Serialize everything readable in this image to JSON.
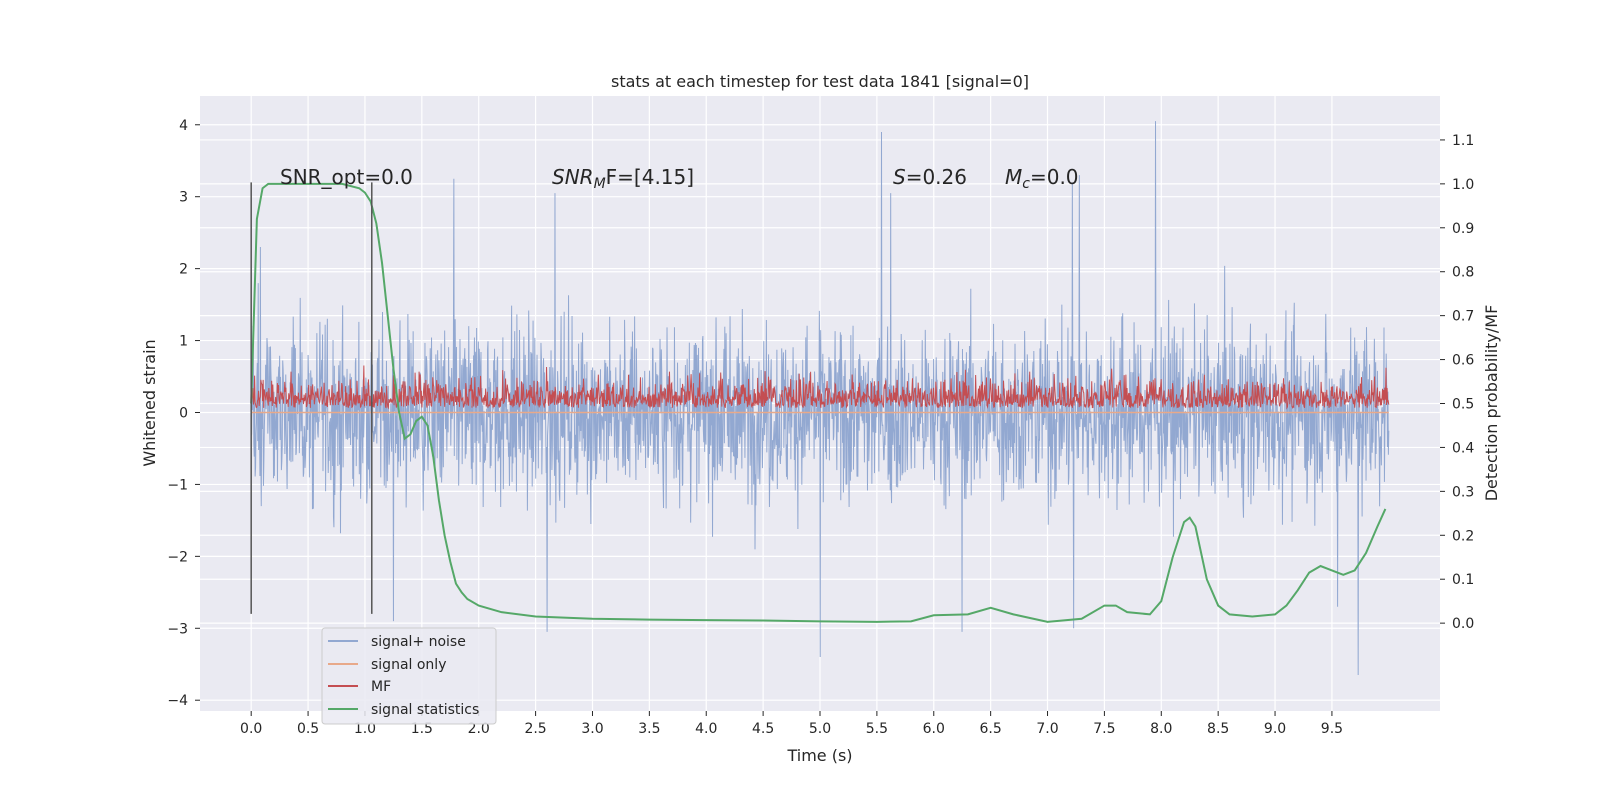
{
  "chart_data": {
    "type": "line",
    "title": "stats at each timestep for test data 1841 [signal=0]",
    "xlabel": "Time (s)",
    "ylabel": "Whitened strain",
    "ylabel_right": "Detection probability/MF",
    "xlim": [
      -0.45,
      10.45
    ],
    "ylim": [
      -4.15,
      4.4
    ],
    "ylim_right": [
      -0.2,
      1.2
    ],
    "x_ticks": [
      0.0,
      0.5,
      1.0,
      1.5,
      2.0,
      2.5,
      3.0,
      3.5,
      4.0,
      4.5,
      5.0,
      5.5,
      6.0,
      6.5,
      7.0,
      7.5,
      8.0,
      8.5,
      9.0,
      9.5
    ],
    "x_tick_labels": [
      "0.0",
      "0.5",
      "1.0",
      "1.5",
      "2.0",
      "2.5",
      "3.0",
      "3.5",
      "4.0",
      "4.5",
      "5.0",
      "5.5",
      "6.0",
      "6.5",
      "7.0",
      "7.5",
      "8.0",
      "8.5",
      "9.0",
      "9.5"
    ],
    "y_ticks": [
      4,
      3,
      2,
      1,
      0,
      -1,
      -2,
      -3,
      -4
    ],
    "y_tick_labels": [
      "4",
      "3",
      "2",
      "1",
      "0",
      "−1",
      "−2",
      "−3",
      "−4"
    ],
    "y_right_ticks": [
      1.1,
      1.0,
      0.9,
      0.8,
      0.7,
      0.6,
      0.5,
      0.4,
      0.3,
      0.2,
      0.1,
      0.0
    ],
    "y_right_tick_labels": [
      "1.1",
      "1.0",
      "0.9",
      "0.8",
      "0.7",
      "0.6",
      "0.5",
      "0.4",
      "0.3",
      "0.2",
      "0.1",
      "0.0"
    ],
    "grid": true,
    "legend_placement": "lower-left",
    "annotations": {
      "snr_opt": "SNR_opt=0.0",
      "snr_mf_base": "SNR",
      "snr_mf_sub": "M",
      "snr_mf_rest": "F=[4.15]",
      "s_base": "S",
      "s_rest": "=0.26",
      "mc_base": "M",
      "mc_sub": "c",
      "mc_rest": "=0.0"
    },
    "vertical_markers": [
      {
        "x": 0.0,
        "y_range": [
          -2.8,
          3.2
        ]
      },
      {
        "x": 1.06,
        "y_range": [
          -2.8,
          3.2
        ]
      }
    ],
    "series": [
      {
        "name": "signal+ noise",
        "color": "#92a8d1",
        "x_range": [
          0.0,
          10.0
        ],
        "envelope": {
          "typical_max": 1.6,
          "typical_min": -1.6,
          "peak_max": 4.05,
          "peak_min": -3.65
        },
        "spikes": [
          {
            "x": 0.08,
            "y": 2.3
          },
          {
            "x": 1.78,
            "y": 3.25
          },
          {
            "x": 2.67,
            "y": 3.05
          },
          {
            "x": 5.54,
            "y": 3.9
          },
          {
            "x": 5.62,
            "y": 3.05
          },
          {
            "x": 7.22,
            "y": 3.2
          },
          {
            "x": 7.28,
            "y": 3.3
          },
          {
            "x": 7.95,
            "y": 4.05
          },
          {
            "x": 5.0,
            "y": -3.4
          },
          {
            "x": 2.6,
            "y": -3.05
          },
          {
            "x": 6.25,
            "y": -3.05
          },
          {
            "x": 7.23,
            "y": -3.0
          },
          {
            "x": 9.73,
            "y": -3.65
          },
          {
            "x": 9.55,
            "y": -2.7
          },
          {
            "x": 1.25,
            "y": -2.9
          }
        ]
      },
      {
        "name": "signal only",
        "color": "#e8a98a",
        "x": [
          0.0,
          10.0
        ],
        "y": [
          0.0,
          0.0
        ]
      },
      {
        "name": "MF",
        "color": "#c44e52",
        "x_range": [
          0.0,
          10.0
        ],
        "axis": "right",
        "band_right": {
          "min": 0.49,
          "typical_max": 0.56,
          "peak_max": 0.62
        }
      },
      {
        "name": "signal statistics",
        "color": "#55a868",
        "axis": "right",
        "x": [
          0.0,
          0.05,
          0.1,
          0.15,
          0.25,
          0.5,
          0.8,
          0.95,
          1.0,
          1.05,
          1.1,
          1.15,
          1.2,
          1.25,
          1.3,
          1.35,
          1.4,
          1.45,
          1.5,
          1.55,
          1.6,
          1.65,
          1.7,
          1.75,
          1.8,
          1.85,
          1.9,
          2.0,
          2.2,
          2.5,
          3.0,
          3.5,
          4.0,
          4.5,
          5.0,
          5.5,
          5.8,
          6.0,
          6.3,
          6.5,
          6.7,
          7.0,
          7.3,
          7.5,
          7.6,
          7.7,
          7.9,
          8.0,
          8.1,
          8.2,
          8.25,
          8.3,
          8.4,
          8.5,
          8.6,
          8.8,
          9.0,
          9.1,
          9.2,
          9.3,
          9.4,
          9.5,
          9.6,
          9.7,
          9.8,
          9.9,
          9.97
        ],
        "y": [
          0.5,
          0.92,
          0.99,
          1.0,
          1.0,
          1.0,
          1.0,
          0.99,
          0.98,
          0.96,
          0.91,
          0.82,
          0.7,
          0.58,
          0.48,
          0.42,
          0.43,
          0.46,
          0.47,
          0.45,
          0.38,
          0.28,
          0.2,
          0.14,
          0.09,
          0.07,
          0.055,
          0.04,
          0.025,
          0.015,
          0.01,
          0.008,
          0.007,
          0.006,
          0.004,
          0.003,
          0.004,
          0.018,
          0.02,
          0.035,
          0.02,
          0.003,
          0.01,
          0.04,
          0.04,
          0.025,
          0.02,
          0.05,
          0.15,
          0.23,
          0.24,
          0.22,
          0.1,
          0.04,
          0.02,
          0.015,
          0.02,
          0.04,
          0.075,
          0.115,
          0.13,
          0.12,
          0.11,
          0.12,
          0.16,
          0.22,
          0.26
        ]
      }
    ]
  }
}
